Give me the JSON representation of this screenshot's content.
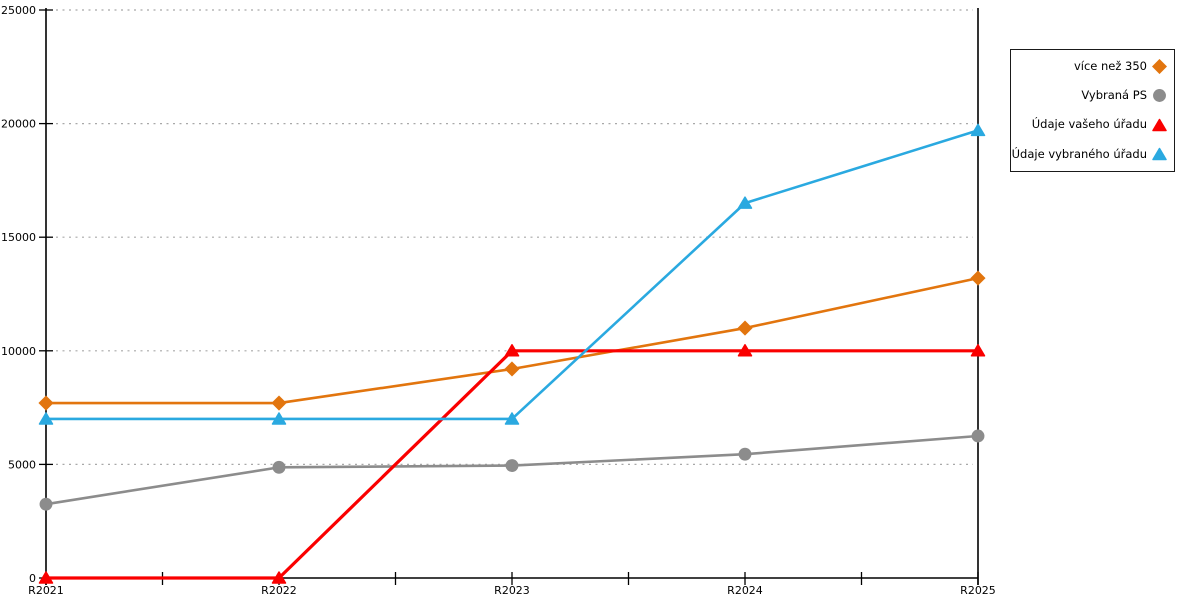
{
  "chart_data": {
    "type": "line",
    "title": "",
    "xlabel": "",
    "ylabel": "",
    "categories": [
      "R2021",
      "R2022",
      "R2023",
      "R2024",
      "R2025"
    ],
    "series": [
      {
        "name": "více než 350",
        "marker": "diamond",
        "color": "#e2750e",
        "line_width": 2.6,
        "values": [
          7700,
          7700,
          9200,
          11000,
          13200
        ]
      },
      {
        "name": "Vybraná PS",
        "marker": "circle",
        "color": "#8c8c8c",
        "line_width": 2.6,
        "values": [
          3250,
          4870,
          4950,
          5450,
          6250
        ]
      },
      {
        "name": "Údaje vašeho úřadu",
        "marker": "triangle",
        "color": "#fa0000",
        "line_width": 3.2,
        "values": [
          0,
          0,
          10000,
          10000,
          10000
        ]
      },
      {
        "name": "Údaje vybraného úřadu",
        "marker": "triangle",
        "color": "#2aa9e0",
        "line_width": 2.6,
        "values": [
          7000,
          7000,
          7000,
          16500,
          19700
        ]
      }
    ],
    "ylim": [
      0,
      25000
    ],
    "ytick_step": 5000,
    "ytick_labels": [
      "0",
      "5000",
      "10000",
      "15000",
      "20000",
      "25000"
    ],
    "grid": "horizontal-dotted",
    "legend_position": "top-right"
  },
  "colors": {
    "background": "#ffffff",
    "axis": "#000000",
    "gridline": "#a8a8a8",
    "legend_border": "#1a1a1a",
    "label_text": "#000000"
  }
}
